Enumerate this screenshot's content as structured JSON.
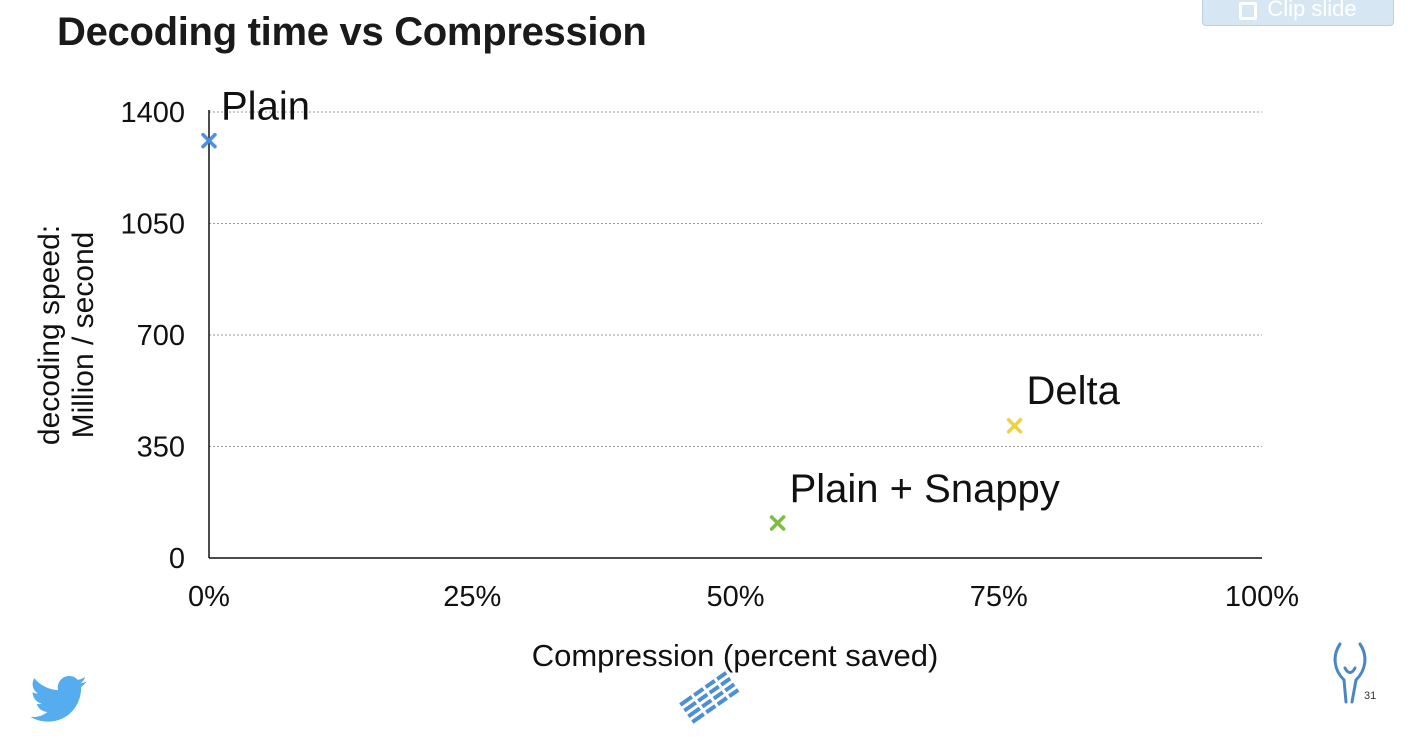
{
  "slide": {
    "title": "Decoding time vs Compression",
    "page_number": "31",
    "clip_button_label": "Clip slide"
  },
  "icons": {
    "clip": "clip-icon",
    "bottom_left": "twitter-bird-icon",
    "bottom_center": "parquet-pattern-icon",
    "bottom_right": "parquet-logo-icon"
  },
  "chart_data": {
    "type": "scatter",
    "title": "Decoding time vs Compression",
    "xlabel": "Compression (percent saved)",
    "ylabel_lines": [
      "decoding speed:",
      "Million / second"
    ],
    "xlim": [
      0,
      100
    ],
    "ylim": [
      0,
      1400
    ],
    "xticks": [
      0,
      25,
      50,
      75,
      100
    ],
    "xtick_labels": [
      "0%",
      "25%",
      "50%",
      "75%",
      "100%"
    ],
    "yticks": [
      0,
      350,
      700,
      1050,
      1400
    ],
    "ytick_labels": [
      "0",
      "350",
      "700",
      "1050",
      "1400"
    ],
    "grid": "horizontal dotted",
    "points": [
      {
        "label": "Plain",
        "x": 0,
        "y": 1310,
        "color": "#4a90e2"
      },
      {
        "label": "Plain + Snappy",
        "x": 54,
        "y": 110,
        "color": "#7cbd42"
      },
      {
        "label": "Delta",
        "x": 76.5,
        "y": 415,
        "color": "#ecd43c"
      }
    ]
  }
}
